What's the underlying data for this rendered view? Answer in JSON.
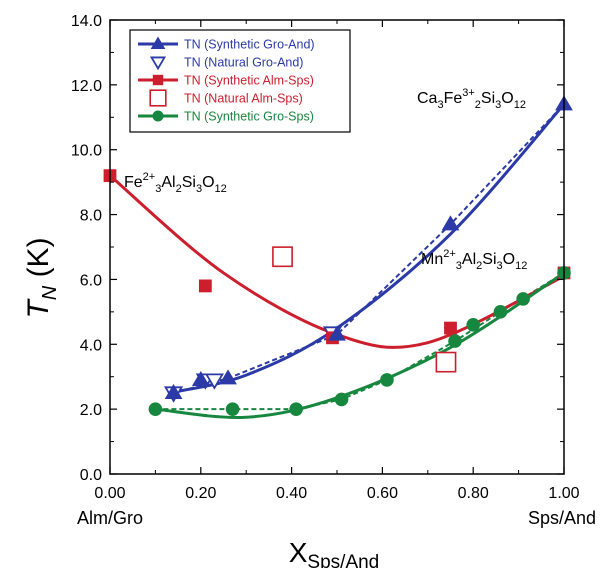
{
  "chart_data": {
    "type": "scatter",
    "title": "",
    "ylabel_main": "T",
    "ylabel_sub": "N",
    "ylabel_unit": " (K)",
    "xlabel_main": "X",
    "xlabel_sub": "Sps/And",
    "x_end_left": "Alm/Gro",
    "x_end_right": "Sps/And",
    "xlim": [
      0,
      1
    ],
    "ylim": [
      0,
      14
    ],
    "xticks": [
      "0.00",
      "0.20",
      "0.40",
      "0.60",
      "0.80",
      "1.00"
    ],
    "yticks": [
      "0.0",
      "2.0",
      "4.0",
      "6.0",
      "8.0",
      "10.0",
      "12.0",
      "14.0"
    ],
    "legend_position": "top-left",
    "colors": {
      "blue": "#2b3aa6",
      "red": "#cc1e2c",
      "green": "#17873f"
    },
    "series": [
      {
        "name": "TN (Synthetic Gro-And)",
        "color": "#2b3aa6",
        "marker": "triangle-filled",
        "x": [
          0.14,
          0.2,
          0.26,
          0.5,
          0.75,
          1.0
        ],
        "y": [
          2.5,
          2.9,
          2.95,
          4.3,
          7.7,
          11.4
        ]
      },
      {
        "name": "TN (Natural Gro-And)",
        "color": "#2b3aa6",
        "marker": "triangle-open-down",
        "x": [
          0.14,
          0.21,
          0.23,
          0.49
        ],
        "y": [
          2.5,
          2.9,
          2.9,
          4.35
        ]
      },
      {
        "name": "TN (Synthetic Alm-Sps)",
        "color": "#cc1e2c",
        "marker": "square-filled",
        "x": [
          0.0,
          0.21,
          0.49,
          0.75,
          1.0
        ],
        "y": [
          9.2,
          5.8,
          4.2,
          4.5,
          6.2
        ]
      },
      {
        "name": "TN (Natural Alm-Sps)",
        "color": "#cc1e2c",
        "marker": "square-open",
        "x": [
          0.38,
          0.74
        ],
        "y": [
          6.7,
          3.45
        ]
      },
      {
        "name": "TN (Synthetic Gro-Sps)",
        "color": "#17873f",
        "marker": "circle-filled",
        "x": [
          0.1,
          0.27,
          0.41,
          0.51,
          0.61,
          0.76,
          0.8,
          0.86,
          0.91,
          1.0
        ],
        "y": [
          2.0,
          2.0,
          2.0,
          2.3,
          2.9,
          4.1,
          4.6,
          5.0,
          5.4,
          6.2
        ]
      }
    ],
    "fits": {
      "gro_and": {
        "x": [
          0.13,
          0.3,
          0.5,
          0.75,
          1.0
        ],
        "y": [
          2.5,
          3.05,
          4.5,
          7.4,
          11.4
        ]
      },
      "alm_sps": {
        "x": [
          0.0,
          0.25,
          0.5,
          0.7,
          1.0
        ],
        "y": [
          9.2,
          6.2,
          4.3,
          4.05,
          6.1
        ]
      },
      "gro_sps": {
        "x": [
          0.1,
          0.3,
          0.5,
          0.75,
          1.0
        ],
        "y": [
          2.0,
          1.75,
          2.35,
          3.9,
          6.2
        ]
      }
    },
    "dashed_guides": {
      "gro_and": {
        "x": [
          0.14,
          0.26,
          0.5,
          0.75,
          1.0
        ],
        "y": [
          2.5,
          2.95,
          4.3,
          7.7,
          11.4
        ]
      },
      "gro_sps": {
        "x": [
          0.1,
          0.27,
          0.41,
          0.51,
          0.61,
          0.76,
          0.86,
          1.0
        ],
        "y": [
          2.0,
          2.0,
          2.0,
          2.3,
          2.9,
          4.1,
          5.0,
          6.2
        ]
      }
    },
    "annotations": [
      {
        "id": "fe",
        "parts": [
          [
            "Fe",
            ""
          ],
          [
            "2+",
            "sup"
          ],
          [
            "3",
            "sub"
          ],
          [
            "Al",
            ""
          ],
          [
            "2",
            "sub"
          ],
          [
            "Si",
            ""
          ],
          [
            "3",
            "sub"
          ],
          [
            "O",
            ""
          ],
          [
            "12",
            "sub"
          ]
        ]
      },
      {
        "id": "ca",
        "parts": [
          [
            "Ca",
            ""
          ],
          [
            "3",
            "sub"
          ],
          [
            "Fe",
            ""
          ],
          [
            "3+",
            "sup"
          ],
          [
            "2",
            "sub"
          ],
          [
            "Si",
            ""
          ],
          [
            "3",
            "sub"
          ],
          [
            "O",
            ""
          ],
          [
            "12",
            "sub"
          ]
        ]
      },
      {
        "id": "mn",
        "parts": [
          [
            "Mn",
            ""
          ],
          [
            "2+",
            "sup"
          ],
          [
            "3",
            "sub"
          ],
          [
            "Al",
            ""
          ],
          [
            "2",
            "sub"
          ],
          [
            "Si",
            ""
          ],
          [
            "3",
            "sub"
          ],
          [
            "O",
            ""
          ],
          [
            "12",
            "sub"
          ]
        ]
      }
    ]
  }
}
